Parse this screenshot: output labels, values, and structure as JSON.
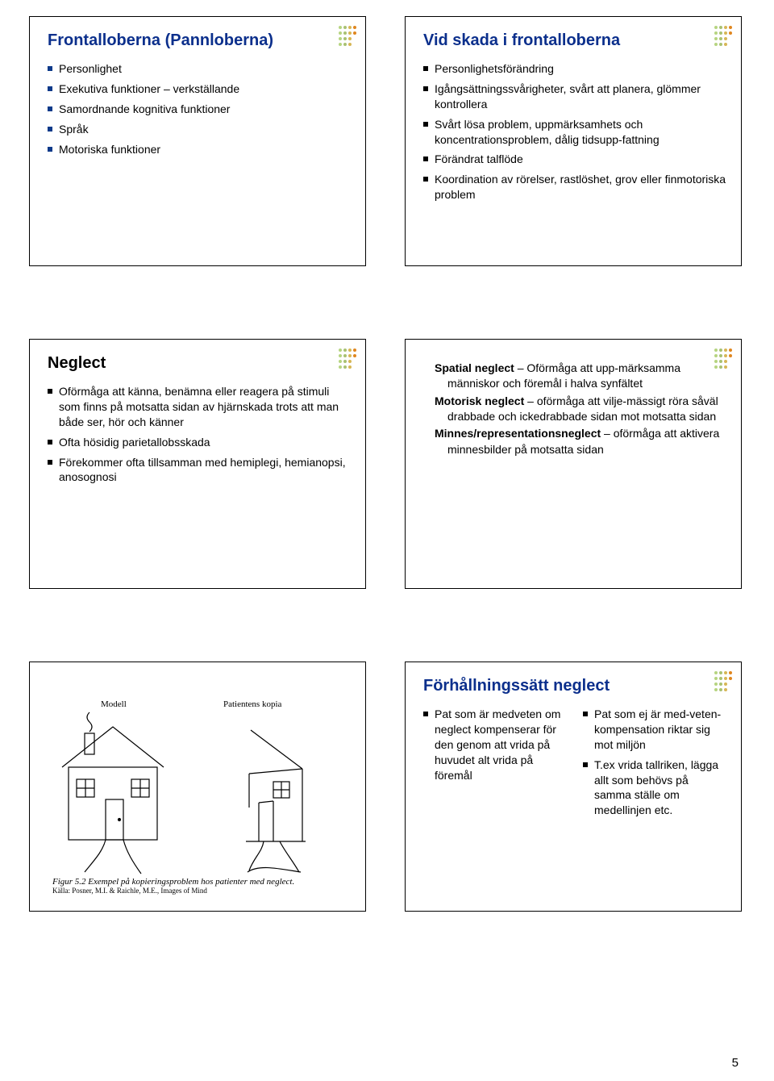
{
  "page_number": "5",
  "logo_colors": {
    "col1": "#b6d480",
    "col2": "#a9c172",
    "col3": "#d6b655",
    "col4": "#e0861f"
  },
  "slides": {
    "s1": {
      "title": "Frontalloberna (Pannloberna)",
      "title_color": "#0b2f8c",
      "bullet_color": "#0d3a8a",
      "items": [
        "Personlighet",
        "Exekutiva funktioner – verkställande",
        "Samordnande kognitiva funktioner",
        "Språk",
        "Motoriska funktioner"
      ]
    },
    "s2": {
      "title": "Vid skada i frontalloberna",
      "title_color": "#0b2f8c",
      "bullet_color": "#000000",
      "items": [
        "Personlighetsförändring",
        "Igångsättningssvårigheter, svårt att planera, glömmer kontrollera",
        "Svårt lösa problem, uppmärksamhets och koncentrationsproblem, dålig tidsupp-fattning",
        "Förändrat talflöde",
        "Koordination av rörelser, rastlöshet, grov eller finmotoriska problem"
      ]
    },
    "s3": {
      "title": "Neglect",
      "title_color": "#000000",
      "bullet_color": "#000000",
      "items": [
        "Oförmåga att känna, benämna eller reagera på stimuli som finns på motsatta sidan av hjärnskada trots att man både ser, hör och känner",
        "Ofta hösidig parietallobsskada",
        "Förekommer ofta tillsamman med hemiplegi, hemianopsi, anosognosi"
      ]
    },
    "s4": {
      "blocks": [
        {
          "term": "Spatial neglect",
          "desc": " – Oförmåga att upp-märksamma människor och föremål i halva synfältet"
        },
        {
          "term": "Motorisk neglect",
          "desc": " – oförmåga att vilje-mässigt röra såväl drabbade och ickedrabbade sidan mot motsatta sidan"
        },
        {
          "term": "Minnes/representationsneglect",
          "desc": " – oförmåga att aktivera minnesbilder på motsatta sidan"
        }
      ]
    },
    "s5": {
      "model_label": "Modell",
      "copy_label": "Patientens kopia",
      "caption_line1": "Figur 5.2   Exempel på kopieringsproblem hos patienter med neglect.",
      "caption_line2": "Källa: Posner, M.I. & Raichle, M.E., Images of Mind"
    },
    "s6": {
      "title": "Förhållningssätt neglect",
      "title_color": "#0b2f8c",
      "bullet_color": "#000000",
      "left_items": [
        "Pat som är medveten om neglect kompenserar för den genom att vrida på huvudet alt vrida på föremål"
      ],
      "right_items": [
        "Pat som ej är med-veten- kompensation riktar sig mot miljön",
        "T.ex vrida tallriken, lägga allt som behövs på samma ställe om medellinjen etc."
      ]
    }
  }
}
